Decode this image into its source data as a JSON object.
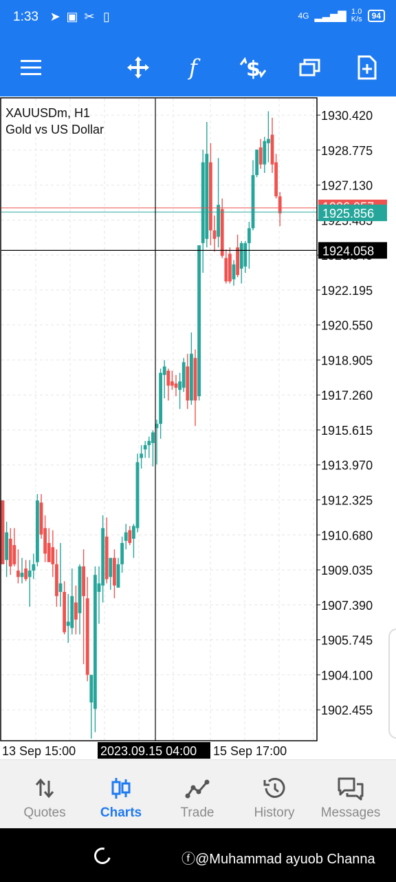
{
  "status_bar": {
    "time": "1:33",
    "network": "4G",
    "speed_value": "1.0",
    "speed_unit": "K/s",
    "battery": "94",
    "icons": [
      "telegram-icon",
      "gallery-icon",
      "scissors-icon",
      "media-icon"
    ]
  },
  "toolbar": {
    "buttons": [
      "menu-icon",
      "crosshair-move-icon",
      "indicators-f-icon",
      "trade-dollar-icon",
      "windows-icon",
      "new-document-icon"
    ]
  },
  "chart_header": {
    "symbol": "XAUUSDm, H1",
    "description": "Gold vs US Dollar"
  },
  "chart_data": {
    "type": "candlestick",
    "symbol": "XAUUSDm",
    "timeframe": "H1",
    "ylim": [
      1901.0,
      1931.2
    ],
    "y_ticks": [
      "1930.420",
      "1928.775",
      "1927.130",
      "1925.485",
      "1923.840",
      "1922.195",
      "1920.550",
      "1918.905",
      "1917.260",
      "1915.615",
      "1913.970",
      "1912.325",
      "1910.680",
      "1909.035",
      "1907.390",
      "1905.745",
      "1904.100",
      "1902.455"
    ],
    "x_labels": [
      "13 Sep 15:00",
      "2023.09.15 04:00",
      "15 Sep 17:00"
    ],
    "bid_price": "1925.856",
    "ask_price": "1926.057",
    "crosshair_price": "1924.058",
    "crosshair_time": "2023.09.15 04:00",
    "colors": {
      "bull": "#26a69a",
      "bear": "#ef5350",
      "bid_line": "#26a69a",
      "ask_line": "#ef5350"
    },
    "candles": [
      {
        "o": 1912.3,
        "h": 1912.3,
        "l": 1909.5,
        "c": 1909.3
      },
      {
        "o": 1909.5,
        "h": 1911.3,
        "l": 1908.7,
        "c": 1910.8
      },
      {
        "o": 1910.5,
        "h": 1911.0,
        "l": 1908.8,
        "c": 1909.2
      },
      {
        "o": 1910.2,
        "h": 1911.0,
        "l": 1909.2,
        "c": 1909.3
      },
      {
        "o": 1909.0,
        "h": 1910.0,
        "l": 1908.4,
        "c": 1908.7
      },
      {
        "o": 1908.7,
        "h": 1909.6,
        "l": 1908.4,
        "c": 1908.9
      },
      {
        "o": 1909.1,
        "h": 1909.5,
        "l": 1908.5,
        "c": 1908.6
      },
      {
        "o": 1908.7,
        "h": 1909.5,
        "l": 1907.3,
        "c": 1909.0
      },
      {
        "o": 1909.0,
        "h": 1909.8,
        "l": 1908.6,
        "c": 1909.3
      },
      {
        "o": 1909.4,
        "h": 1912.6,
        "l": 1909.2,
        "c": 1912.3
      },
      {
        "o": 1912.2,
        "h": 1912.6,
        "l": 1910.5,
        "c": 1910.7
      },
      {
        "o": 1911.0,
        "h": 1911.6,
        "l": 1909.4,
        "c": 1909.8
      },
      {
        "o": 1910.3,
        "h": 1911.0,
        "l": 1909.4,
        "c": 1909.4
      },
      {
        "o": 1910.1,
        "h": 1910.9,
        "l": 1908.7,
        "c": 1909.3
      },
      {
        "o": 1909.3,
        "h": 1910.0,
        "l": 1907.3,
        "c": 1907.8
      },
      {
        "o": 1908.0,
        "h": 1910.3,
        "l": 1907.3,
        "c": 1908.4
      },
      {
        "o": 1908.0,
        "h": 1908.5,
        "l": 1906.0,
        "c": 1906.1
      },
      {
        "o": 1906.4,
        "h": 1907.9,
        "l": 1905.6,
        "c": 1906.6
      },
      {
        "o": 1906.3,
        "h": 1909.1,
        "l": 1906.0,
        "c": 1907.8
      },
      {
        "o": 1907.5,
        "h": 1908.3,
        "l": 1906.0,
        "c": 1906.7
      },
      {
        "o": 1907.0,
        "h": 1909.3,
        "l": 1906.0,
        "c": 1909.2
      },
      {
        "o": 1909.2,
        "h": 1910.0,
        "l": 1904.6,
        "c": 1907.8
      },
      {
        "o": 1907.7,
        "h": 1908.7,
        "l": 1903.8,
        "c": 1904.1
      },
      {
        "o": 1902.8,
        "h": 1904.1,
        "l": 1901.1,
        "c": 1904.1
      },
      {
        "o": 1902.5,
        "h": 1909.2,
        "l": 1901.4,
        "c": 1908.8
      },
      {
        "o": 1908.0,
        "h": 1909.2,
        "l": 1906.5,
        "c": 1908.4
      },
      {
        "o": 1908.3,
        "h": 1911.6,
        "l": 1907.5,
        "c": 1911.0
      },
      {
        "o": 1910.6,
        "h": 1911.5,
        "l": 1908.4,
        "c": 1908.6
      },
      {
        "o": 1908.7,
        "h": 1909.6,
        "l": 1908.1,
        "c": 1909.6
      },
      {
        "o": 1909.6,
        "h": 1910.0,
        "l": 1907.7,
        "c": 1908.3
      },
      {
        "o": 1908.2,
        "h": 1909.6,
        "l": 1908.2,
        "c": 1909.3
      },
      {
        "o": 1909.3,
        "h": 1910.6,
        "l": 1908.9,
        "c": 1910.3
      },
      {
        "o": 1910.4,
        "h": 1911.2,
        "l": 1910.0,
        "c": 1910.8
      },
      {
        "o": 1910.9,
        "h": 1911.1,
        "l": 1910.2,
        "c": 1910.3
      },
      {
        "o": 1910.5,
        "h": 1911.2,
        "l": 1909.6,
        "c": 1911.1
      },
      {
        "o": 1911.0,
        "h": 1914.5,
        "l": 1910.8,
        "c": 1914.1
      },
      {
        "o": 1914.3,
        "h": 1914.9,
        "l": 1913.8,
        "c": 1914.5
      },
      {
        "o": 1914.7,
        "h": 1915.1,
        "l": 1914.3,
        "c": 1914.9
      },
      {
        "o": 1914.9,
        "h": 1915.3,
        "l": 1914.3,
        "c": 1915.1
      },
      {
        "o": 1915.0,
        "h": 1915.6,
        "l": 1913.9,
        "c": 1915.5
      },
      {
        "o": 1915.7,
        "h": 1916.1,
        "l": 1914.0,
        "c": 1915.9
      },
      {
        "o": 1915.9,
        "h": 1918.5,
        "l": 1915.2,
        "c": 1918.3
      },
      {
        "o": 1918.2,
        "h": 1918.9,
        "l": 1917.1,
        "c": 1918.6
      },
      {
        "o": 1918.4,
        "h": 1918.5,
        "l": 1917.0,
        "c": 1917.7
      },
      {
        "o": 1917.9,
        "h": 1918.4,
        "l": 1917.5,
        "c": 1917.7
      },
      {
        "o": 1917.8,
        "h": 1918.2,
        "l": 1917.2,
        "c": 1917.6
      },
      {
        "o": 1917.5,
        "h": 1918.3,
        "l": 1916.6,
        "c": 1917.9
      },
      {
        "o": 1917.6,
        "h": 1919.0,
        "l": 1917.4,
        "c": 1918.8
      },
      {
        "o": 1918.6,
        "h": 1919.2,
        "l": 1916.6,
        "c": 1917.0
      },
      {
        "o": 1917.0,
        "h": 1920.2,
        "l": 1916.8,
        "c": 1919.2
      },
      {
        "o": 1919.0,
        "h": 1919.4,
        "l": 1915.8,
        "c": 1917.0
      },
      {
        "o": 1917.2,
        "h": 1924.3,
        "l": 1917.0,
        "c": 1924.3
      },
      {
        "o": 1924.4,
        "h": 1928.8,
        "l": 1923.0,
        "c": 1928.2
      },
      {
        "o": 1924.6,
        "h": 1930.1,
        "l": 1924.2,
        "c": 1928.6
      },
      {
        "o": 1928.2,
        "h": 1929.1,
        "l": 1924.3,
        "c": 1925.0
      },
      {
        "o": 1925.0,
        "h": 1925.7,
        "l": 1924.0,
        "c": 1924.6
      },
      {
        "o": 1924.7,
        "h": 1928.4,
        "l": 1924.2,
        "c": 1926.2
      },
      {
        "o": 1926.0,
        "h": 1926.5,
        "l": 1923.7,
        "c": 1923.8
      },
      {
        "o": 1923.7,
        "h": 1924.1,
        "l": 1922.5,
        "c": 1922.6
      },
      {
        "o": 1923.9,
        "h": 1924.2,
        "l": 1922.5,
        "c": 1922.6
      },
      {
        "o": 1922.7,
        "h": 1923.6,
        "l": 1922.4,
        "c": 1923.4
      },
      {
        "o": 1924.2,
        "h": 1924.8,
        "l": 1922.8,
        "c": 1922.9
      },
      {
        "o": 1923.2,
        "h": 1924.5,
        "l": 1922.5,
        "c": 1924.4
      },
      {
        "o": 1923.3,
        "h": 1924.5,
        "l": 1923.0,
        "c": 1924.4
      },
      {
        "o": 1924.4,
        "h": 1925.4,
        "l": 1923.2,
        "c": 1925.1
      },
      {
        "o": 1925.1,
        "h": 1928.3,
        "l": 1925.0,
        "c": 1927.6
      },
      {
        "o": 1927.6,
        "h": 1928.8,
        "l": 1927.5,
        "c": 1928.8
      },
      {
        "o": 1928.9,
        "h": 1929.3,
        "l": 1927.9,
        "c": 1928.1
      },
      {
        "o": 1928.1,
        "h": 1929.4,
        "l": 1927.7,
        "c": 1929.2
      },
      {
        "o": 1929.1,
        "h": 1930.6,
        "l": 1928.2,
        "c": 1929.3
      },
      {
        "o": 1929.5,
        "h": 1930.3,
        "l": 1927.7,
        "c": 1928.1
      },
      {
        "o": 1928.2,
        "h": 1928.6,
        "l": 1926.5,
        "c": 1926.6
      },
      {
        "o": 1926.6,
        "h": 1926.8,
        "l": 1925.2,
        "c": 1925.8
      }
    ]
  },
  "bottom_nav": {
    "items": [
      {
        "label": "Quotes",
        "icon": "quotes-arrows-icon",
        "active": false
      },
      {
        "label": "Charts",
        "icon": "charts-candles-icon",
        "active": true
      },
      {
        "label": "Trade",
        "icon": "trade-line-icon",
        "active": false
      },
      {
        "label": "History",
        "icon": "history-clock-icon",
        "active": false
      },
      {
        "label": "Messages",
        "icon": "messages-bubbles-icon",
        "active": false
      }
    ]
  },
  "system_bar": {
    "watermark": "ⓕ@Muhammad ayuob Channa"
  }
}
